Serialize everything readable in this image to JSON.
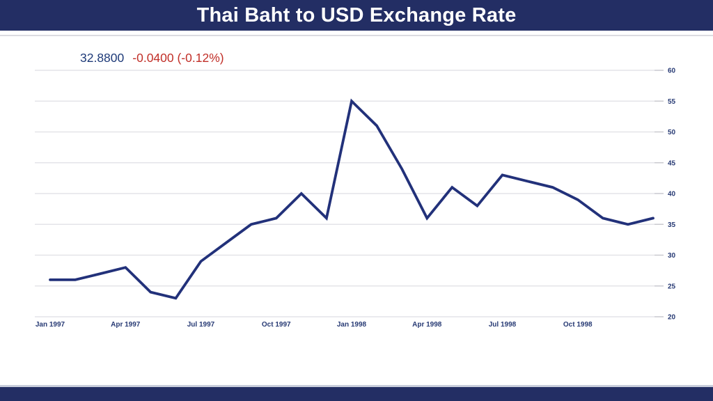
{
  "header": {
    "title": "Thai Baht to USD Exchange Rate",
    "bar_color": "#232E64",
    "text_color": "#FFFFFF"
  },
  "quote": {
    "price": "32.8800",
    "change": "-0.0400 (-0.12%)",
    "price_color": "#1E3A78",
    "change_color": "#C12F28"
  },
  "chart_data": {
    "type": "line",
    "title": "Thai Baht to USD Exchange Rate",
    "xlabel": "",
    "ylabel": "",
    "x": [
      "Jan 1997",
      "Feb 1997",
      "Mar 1997",
      "Apr 1997",
      "May 1997",
      "Jun 1997",
      "Jul 1997",
      "Aug 1997",
      "Sep 1997",
      "Oct 1997",
      "Nov 1997",
      "Dec 1997",
      "Jan 1998",
      "Feb 1998",
      "Mar 1998",
      "Apr 1998",
      "May 1998",
      "Jun 1998",
      "Jul 1998",
      "Aug 1998",
      "Sep 1998",
      "Oct 1998",
      "Nov 1998",
      "Dec 1998",
      "Jan 1999"
    ],
    "values": [
      26,
      26,
      27,
      28,
      24,
      23,
      29,
      32,
      35,
      36,
      40,
      36,
      55,
      51,
      44,
      36,
      41,
      38,
      43,
      42,
      41,
      39,
      36,
      35,
      36
    ],
    "x_tick_labels": [
      "Jan 1997",
      "Apr 1997",
      "Jul 1997",
      "Oct 1997",
      "Jan 1998",
      "Apr 1998",
      "Jul 1998",
      "Oct 1998"
    ],
    "y_ticks": [
      20,
      25,
      30,
      35,
      40,
      45,
      50,
      55,
      60
    ],
    "ylim": [
      20,
      60
    ],
    "grid": true,
    "legend": "none",
    "y_axis_side": "right",
    "line_color": "#22317A",
    "gridline_color": "#E4E4E8",
    "tick_color": "#C9C9CF",
    "axis_label_color": "#273A74"
  },
  "footer": {
    "bar_color": "#232E64"
  }
}
